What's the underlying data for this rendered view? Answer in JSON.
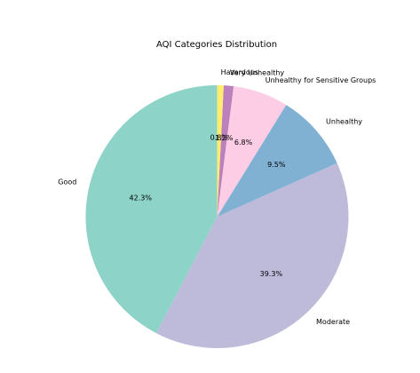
{
  "chart_data": {
    "type": "pie",
    "title": "AQI Categories Distribution",
    "start_angle_deg": 90,
    "direction": "counterclockwise",
    "slices": [
      {
        "label": "Good",
        "value": 42.3,
        "pct_text": "42.3%",
        "color": "#8dd3c7"
      },
      {
        "label": "Moderate",
        "value": 39.3,
        "pct_text": "39.3%",
        "color": "#bebada"
      },
      {
        "label": "Unhealthy",
        "value": 9.5,
        "pct_text": "9.5%",
        "color": "#80b1d3"
      },
      {
        "label": "Unhealthy for Sensitive Groups",
        "value": 6.8,
        "pct_text": "6.8%",
        "color": "#fccde5"
      },
      {
        "label": "Very Unhealthy",
        "value": 1.2,
        "pct_text": "1.2%",
        "color": "#bc80bd"
      },
      {
        "label": "Hazardous",
        "value": 0.8,
        "pct_text": "0.8%",
        "color": "#ffed6f"
      }
    ]
  }
}
